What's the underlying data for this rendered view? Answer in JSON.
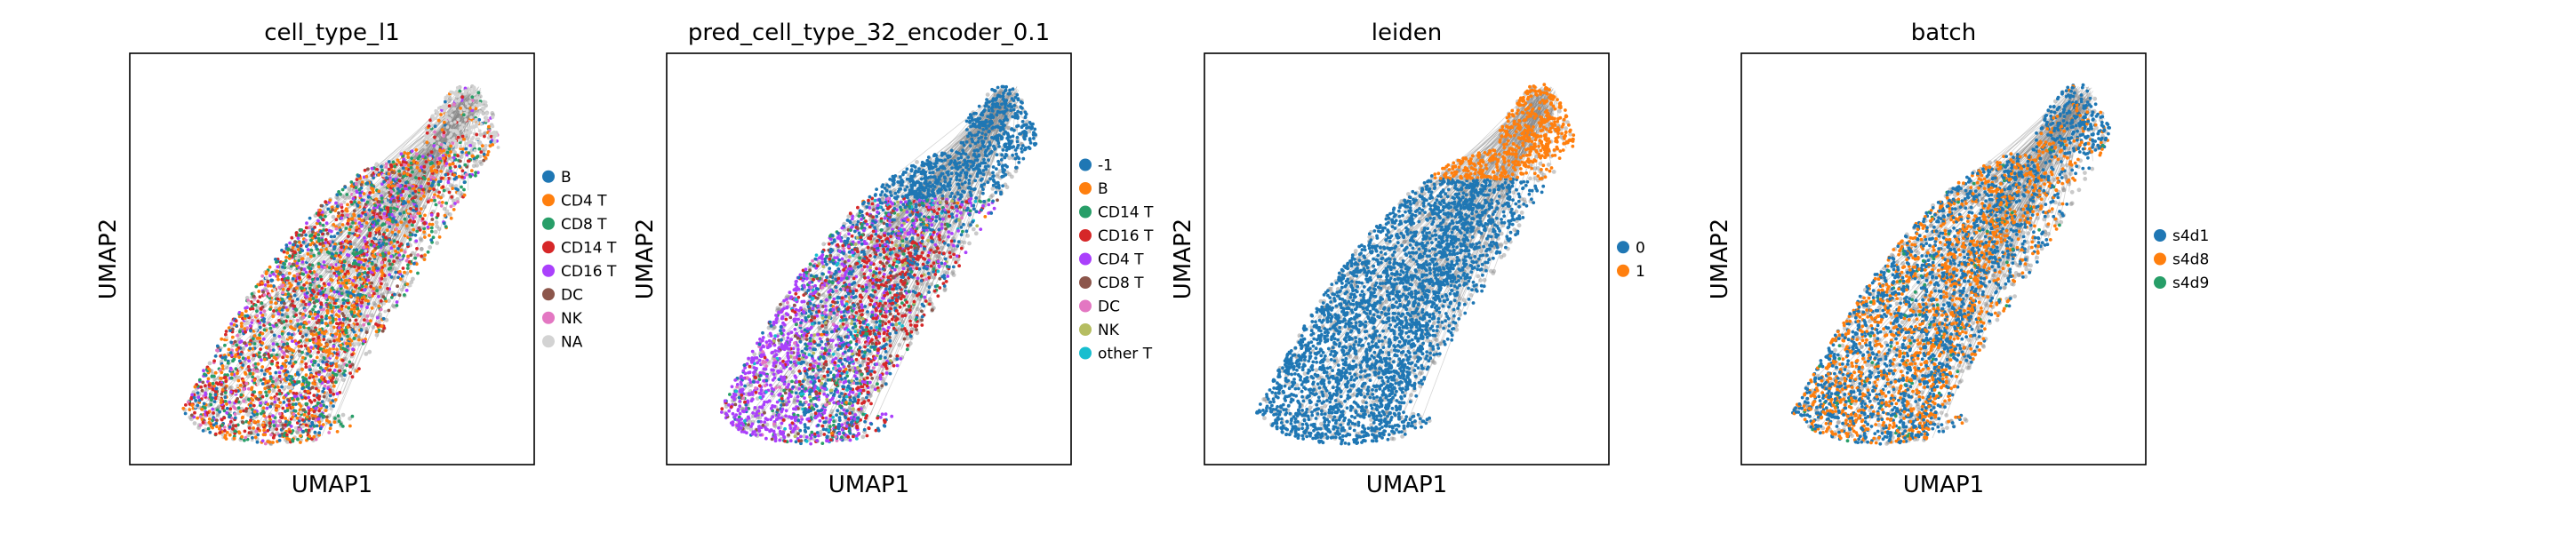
{
  "chart_data": [
    {
      "type": "scatter",
      "title": "cell_type_l1",
      "xlabel": "UMAP1",
      "ylabel": "UMAP2",
      "legend_placement": "right",
      "grid": false,
      "legend": [
        {
          "label": "B",
          "color": "#1f77b4"
        },
        {
          "label": "CD4 T",
          "color": "#ff7f0e"
        },
        {
          "label": "CD8 T",
          "color": "#279e68"
        },
        {
          "label": "CD14 T",
          "color": "#d62728"
        },
        {
          "label": "CD16 T",
          "color": "#aa40fc"
        },
        {
          "label": "DC",
          "color": "#8c564b"
        },
        {
          "label": "NK",
          "color": "#e377c2"
        },
        {
          "label": "NA",
          "color": "#d3d3d3"
        }
      ]
    },
    {
      "type": "scatter",
      "title": "pred_cell_type_32_encoder_0.1",
      "xlabel": "UMAP1",
      "ylabel": "UMAP2",
      "legend_placement": "right",
      "grid": false,
      "legend": [
        {
          "label": "-1",
          "color": "#1f77b4"
        },
        {
          "label": "B",
          "color": "#ff7f0e"
        },
        {
          "label": "CD14 T",
          "color": "#279e68"
        },
        {
          "label": "CD16 T",
          "color": "#d62728"
        },
        {
          "label": "CD4 T",
          "color": "#aa40fc"
        },
        {
          "label": "CD8 T",
          "color": "#8c564b"
        },
        {
          "label": "DC",
          "color": "#e377c2"
        },
        {
          "label": "NK",
          "color": "#b5bd61"
        },
        {
          "label": "other T",
          "color": "#17becf"
        }
      ]
    },
    {
      "type": "scatter",
      "title": "leiden",
      "xlabel": "UMAP1",
      "ylabel": "UMAP2",
      "legend_placement": "right",
      "grid": false,
      "legend": [
        {
          "label": "0",
          "color": "#1f77b4"
        },
        {
          "label": "1",
          "color": "#ff7f0e"
        }
      ]
    },
    {
      "type": "scatter",
      "title": "batch",
      "xlabel": "UMAP1",
      "ylabel": "UMAP2",
      "legend_placement": "right",
      "grid": false,
      "legend": [
        {
          "label": "s4d1",
          "color": "#1f77b4"
        },
        {
          "label": "s4d8",
          "color": "#ff7f0e"
        },
        {
          "label": "s4d9",
          "color": "#279e68"
        }
      ]
    }
  ]
}
